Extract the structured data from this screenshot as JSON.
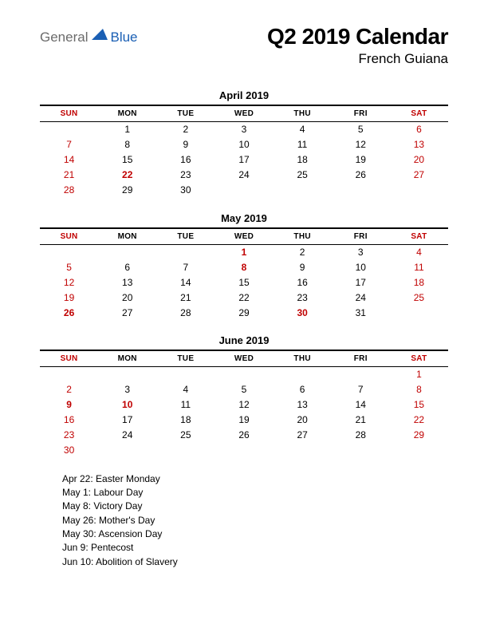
{
  "logo": {
    "general": "General",
    "blue": "Blue",
    "icon_color": "#1a5fb4"
  },
  "title": "Q2 2019 Calendar",
  "subtitle": "French Guiana",
  "day_headers": [
    "SUN",
    "MON",
    "TUE",
    "WED",
    "THU",
    "FRI",
    "SAT"
  ],
  "weekend_cols": [
    0,
    6
  ],
  "header_style": {
    "border_top": "2px solid #000",
    "border_bottom": "1px solid #000",
    "weekend_color": "#c00000",
    "font_size": 10
  },
  "cell_style": {
    "font_size": 12,
    "weekend_color": "#c00000",
    "holiday_color": "#c00000"
  },
  "months": [
    {
      "title": "April 2019",
      "weeks": [
        [
          "",
          "1",
          "2",
          "3",
          "4",
          "5",
          "6"
        ],
        [
          "7",
          "8",
          "9",
          "10",
          "11",
          "12",
          "13"
        ],
        [
          "14",
          "15",
          "16",
          "17",
          "18",
          "19",
          "20"
        ],
        [
          "21",
          "22",
          "23",
          "24",
          "25",
          "26",
          "27"
        ],
        [
          "28",
          "29",
          "30",
          "",
          "",
          "",
          ""
        ]
      ],
      "holidays": [
        "22"
      ]
    },
    {
      "title": "May 2019",
      "weeks": [
        [
          "",
          "",
          "",
          "1",
          "2",
          "3",
          "4"
        ],
        [
          "5",
          "6",
          "7",
          "8",
          "9",
          "10",
          "11"
        ],
        [
          "12",
          "13",
          "14",
          "15",
          "16",
          "17",
          "18"
        ],
        [
          "19",
          "20",
          "21",
          "22",
          "23",
          "24",
          "25"
        ],
        [
          "26",
          "27",
          "28",
          "29",
          "30",
          "31",
          ""
        ]
      ],
      "holidays": [
        "1",
        "8",
        "26",
        "30"
      ]
    },
    {
      "title": "June 2019",
      "weeks": [
        [
          "",
          "",
          "",
          "",
          "",
          "",
          "1"
        ],
        [
          "2",
          "3",
          "4",
          "5",
          "6",
          "7",
          "8"
        ],
        [
          "9",
          "10",
          "11",
          "12",
          "13",
          "14",
          "15"
        ],
        [
          "16",
          "17",
          "18",
          "19",
          "20",
          "21",
          "22"
        ],
        [
          "23",
          "24",
          "25",
          "26",
          "27",
          "28",
          "29"
        ],
        [
          "30",
          "",
          "",
          "",
          "",
          "",
          ""
        ]
      ],
      "holidays": [
        "9",
        "10"
      ]
    }
  ],
  "holiday_list": [
    "Apr 22: Easter Monday",
    "May 1: Labour Day",
    "May 8: Victory Day",
    "May 26: Mother's Day",
    "May 30: Ascension Day",
    "Jun 9: Pentecost",
    "Jun 10: Abolition of Slavery"
  ]
}
